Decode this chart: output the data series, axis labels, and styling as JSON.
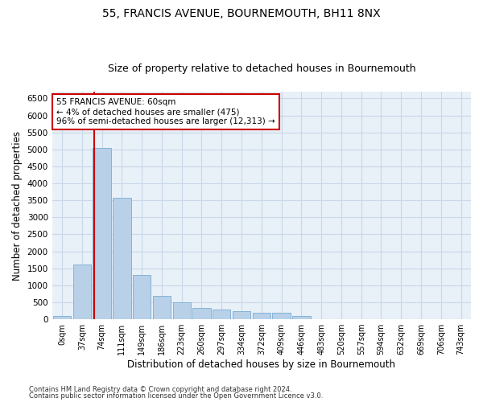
{
  "title": "55, FRANCIS AVENUE, BOURNEMOUTH, BH11 8NX",
  "subtitle": "Size of property relative to detached houses in Bournemouth",
  "xlabel": "Distribution of detached houses by size in Bournemouth",
  "ylabel": "Number of detached properties",
  "footnote1": "Contains HM Land Registry data © Crown copyright and database right 2024.",
  "footnote2": "Contains public sector information licensed under the Open Government Licence v3.0.",
  "bar_labels": [
    "0sqm",
    "37sqm",
    "74sqm",
    "111sqm",
    "149sqm",
    "186sqm",
    "223sqm",
    "260sqm",
    "297sqm",
    "334sqm",
    "372sqm",
    "409sqm",
    "446sqm",
    "483sqm",
    "520sqm",
    "557sqm",
    "594sqm",
    "632sqm",
    "669sqm",
    "706sqm",
    "743sqm"
  ],
  "bar_values": [
    100,
    1620,
    5050,
    3580,
    1300,
    700,
    490,
    340,
    290,
    240,
    200,
    190,
    95,
    0,
    0,
    0,
    0,
    0,
    0,
    0,
    0
  ],
  "bar_color": "#b8d0e8",
  "bar_edge_color": "#7aacd4",
  "vline_color": "#cc0000",
  "annotation_text": "55 FRANCIS AVENUE: 60sqm\n← 4% of detached houses are smaller (475)\n96% of semi-detached houses are larger (12,313) →",
  "annotation_box_color": "#cc0000",
  "ylim": [
    0,
    6700
  ],
  "yticks": [
    0,
    500,
    1000,
    1500,
    2000,
    2500,
    3000,
    3500,
    4000,
    4500,
    5000,
    5500,
    6000,
    6500
  ],
  "bg_color": "#e8f0f8",
  "grid_color": "#c8d8e8",
  "title_fontsize": 10,
  "subtitle_fontsize": 9,
  "axis_label_fontsize": 8.5
}
